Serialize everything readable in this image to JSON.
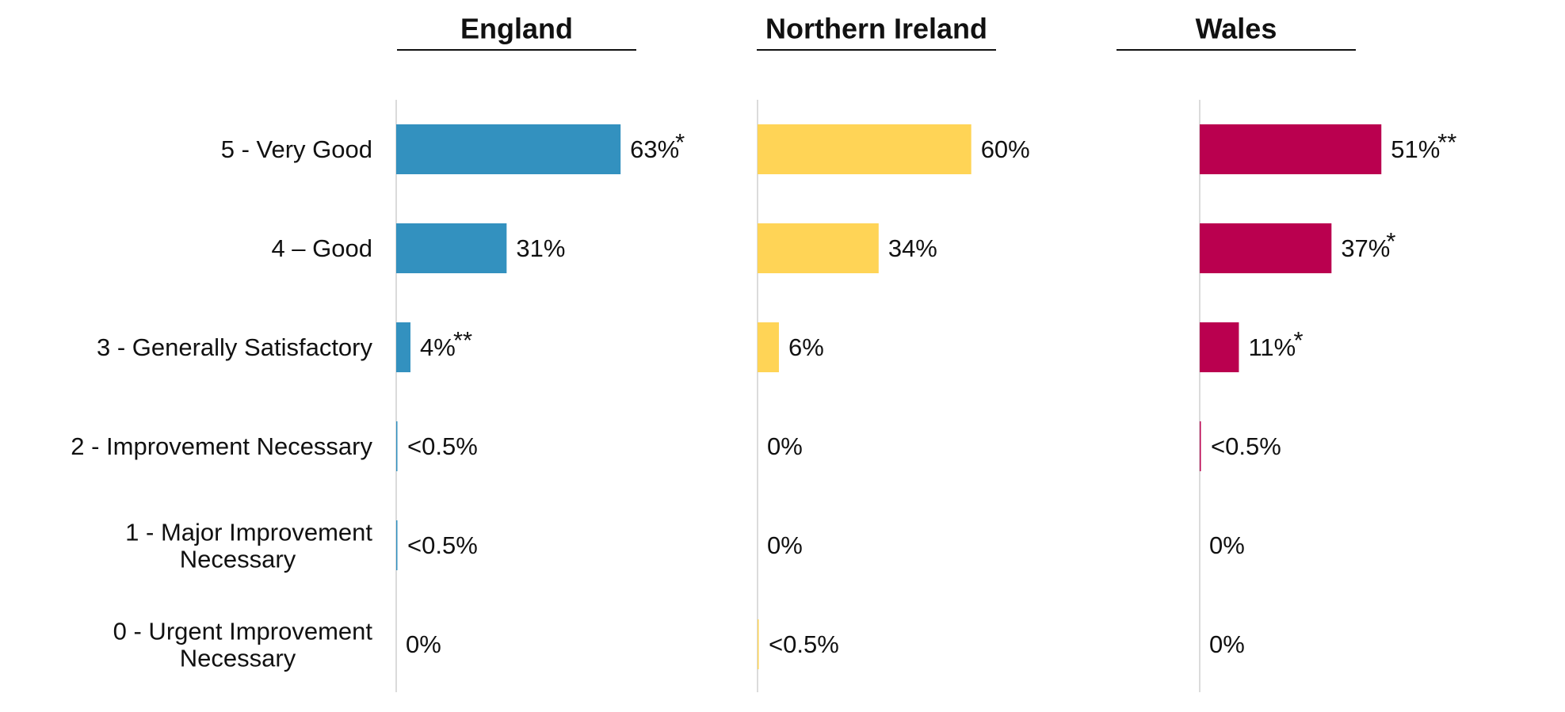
{
  "chart_data": {
    "type": "bar",
    "orientation": "horizontal",
    "grid": false,
    "legend": "none",
    "xlim": [
      0,
      100
    ],
    "categories": [
      "5 - Very Good",
      "4 – Good",
      "3 - Generally Satisfactory",
      "2 - Improvement Necessary",
      "1 - Major Improvement Necessary",
      "0 - Urgent Improvement Necessary"
    ],
    "series": [
      {
        "name": "England",
        "color": "#3391BF",
        "values": [
          63,
          31,
          4,
          0.3,
          0.3,
          0
        ],
        "labels": [
          "63%",
          "31%",
          "4%",
          "<0.5%",
          "<0.5%",
          "0%"
        ],
        "significance": [
          "*",
          "",
          "**",
          "",
          "",
          ""
        ]
      },
      {
        "name": "Northern Ireland",
        "color": "#FFD456",
        "values": [
          60,
          34,
          6,
          0,
          0,
          0.3
        ],
        "labels": [
          "60%",
          "34%",
          "6%",
          "0%",
          "0%",
          "<0.5%"
        ],
        "significance": [
          "",
          "",
          "",
          "",
          "",
          ""
        ]
      },
      {
        "name": "Wales",
        "color": "#BA004F",
        "values": [
          51,
          37,
          11,
          0.3,
          0,
          0
        ],
        "labels": [
          "51%",
          "37%",
          "11%",
          "<0.5%",
          "0%",
          "0%"
        ],
        "significance": [
          "**",
          "*",
          "*",
          "",
          "",
          ""
        ]
      }
    ]
  }
}
